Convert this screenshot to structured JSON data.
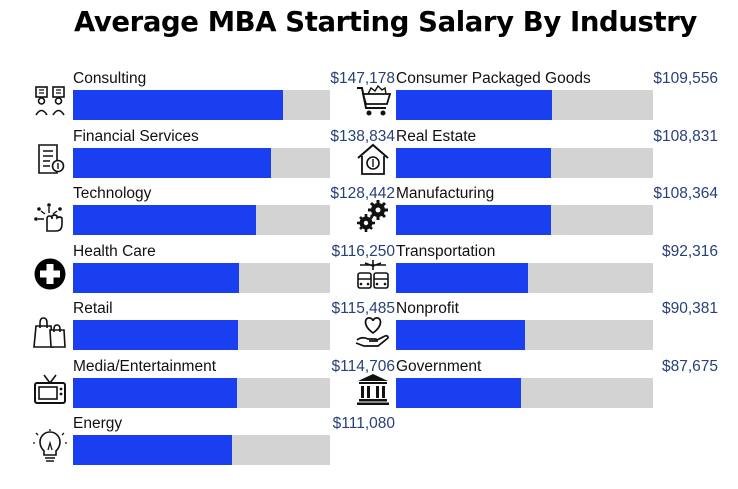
{
  "chart_data": {
    "type": "bar",
    "orientation": "horizontal",
    "title": "Average MBA Starting Salary By Industry",
    "categories": [
      "Consulting",
      "Financial Services",
      "Technology",
      "Health Care",
      "Retail",
      "Media/Entertainment",
      "Energy",
      "Consumer Packaged Goods",
      "Real Estate",
      "Manufacturing",
      "Transportation",
      "Nonprofit",
      "Government"
    ],
    "values": [
      147178,
      138834,
      128442,
      116250,
      115485,
      114706,
      111080,
      109556,
      108831,
      108364,
      92316,
      90381,
      87675
    ],
    "value_labels": [
      "$147,178",
      "$138,834",
      "$128,442",
      "$116,250",
      "$115,485",
      "$114,706",
      "$111,080",
      "$109,556",
      "$108,831",
      "$108,364",
      "$92,316",
      "$90,381",
      "$87,675"
    ],
    "icons": [
      "consulting-people-icon",
      "financial-document-icon",
      "technology-hand-icon",
      "health-cross-icon",
      "shopping-bags-icon",
      "television-icon",
      "lightbulb-icon",
      "shopping-cart-icon",
      "house-dollar-icon",
      "gears-icon",
      "transport-vehicles-icon",
      "heart-hand-icon",
      "government-building-icon"
    ],
    "xlim": [
      0,
      180000
    ],
    "grid": false,
    "legend": "none",
    "colors": {
      "bar": "#1a3ff0",
      "track": "#d3d3d3",
      "value_text": "#28407a"
    }
  }
}
